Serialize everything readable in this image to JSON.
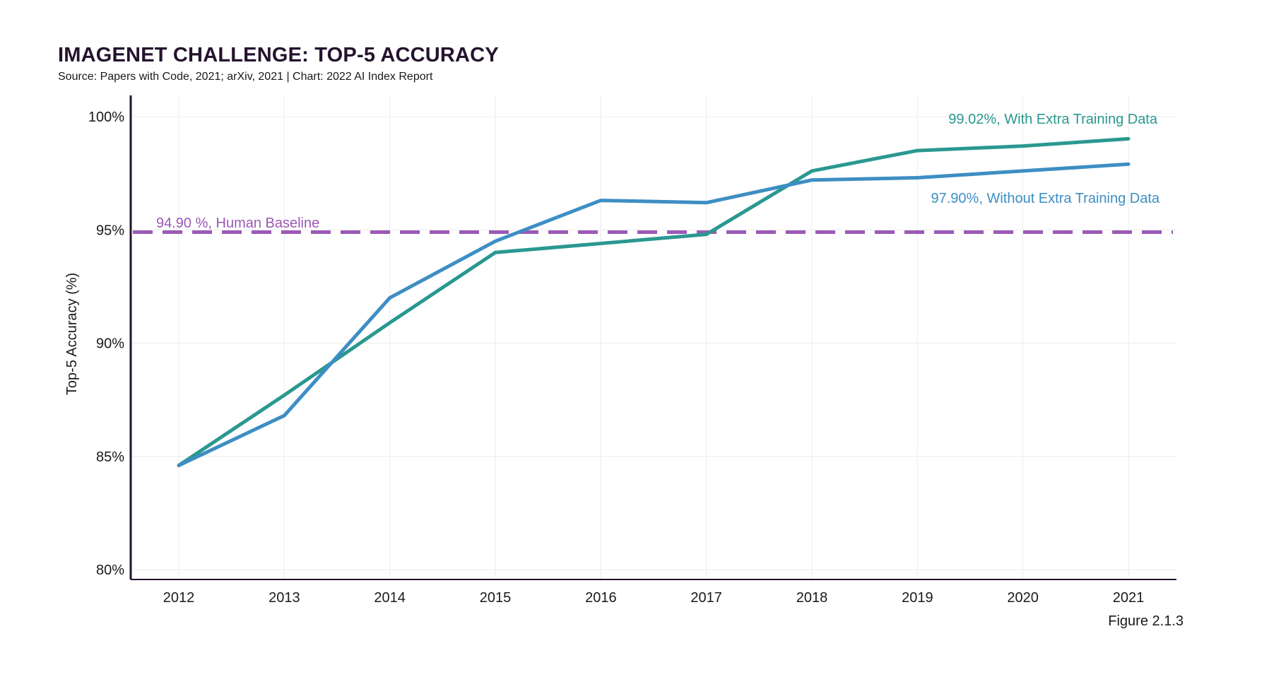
{
  "header": {
    "title": "IMAGENET CHALLENGE: TOP-5 ACCURACY",
    "subtitle": "Source: Papers with Code, 2021; arXiv, 2021 | Chart: 2022 AI Index Report"
  },
  "figure_label": "Figure 2.1.3",
  "chart_data": {
    "type": "line",
    "title": "IMAGENET CHALLENGE: TOP-5 ACCURACY",
    "xlabel": "",
    "ylabel": "Top-5 Accuracy (%)",
    "x": [
      2012,
      2013,
      2014,
      2015,
      2016,
      2017,
      2018,
      2019,
      2020,
      2021
    ],
    "x_tick_labels": [
      "2012",
      "2013",
      "2014",
      "2015",
      "2016",
      "2017",
      "2018",
      "2019",
      "2020",
      "2021"
    ],
    "ylim": [
      80,
      100
    ],
    "y_ticks": [
      80,
      85,
      90,
      95,
      100
    ],
    "y_tick_labels": [
      "80%",
      "85%",
      "90%",
      "95%",
      "100%"
    ],
    "grid": true,
    "series": [
      {
        "key": "with_extra",
        "color": "#2a9890",
        "x": [
          2012,
          2013,
          2014,
          2015,
          2016,
          2017,
          2018,
          2019,
          2020,
          2021
        ],
        "values": [
          84.6,
          87.7,
          90.9,
          94.0,
          94.4,
          94.8,
          97.6,
          98.5,
          98.7,
          99.02
        ]
      },
      {
        "key": "without_extra",
        "color": "#3d8ec4",
        "x": [
          2012,
          2013,
          2014,
          2015,
          2016,
          2017,
          2018,
          2019,
          2020,
          2021
        ],
        "values": [
          84.6,
          86.8,
          92.0,
          94.5,
          96.3,
          96.2,
          97.2,
          97.3,
          97.6,
          97.9
        ]
      }
    ],
    "baseline": {
      "value": 94.9,
      "color": "#9b59b6",
      "style": "dashed"
    },
    "annotations": [
      {
        "key": "with_extra",
        "text": "99.02%, With Extra Training Data",
        "color": "#2a9890"
      },
      {
        "key": "without_extra",
        "text": "97.90%, Without Extra Training Data",
        "color": "#3d8ec4"
      },
      {
        "key": "baseline",
        "text": "94.90 %, Human Baseline",
        "color": "#9b59b6"
      }
    ]
  }
}
